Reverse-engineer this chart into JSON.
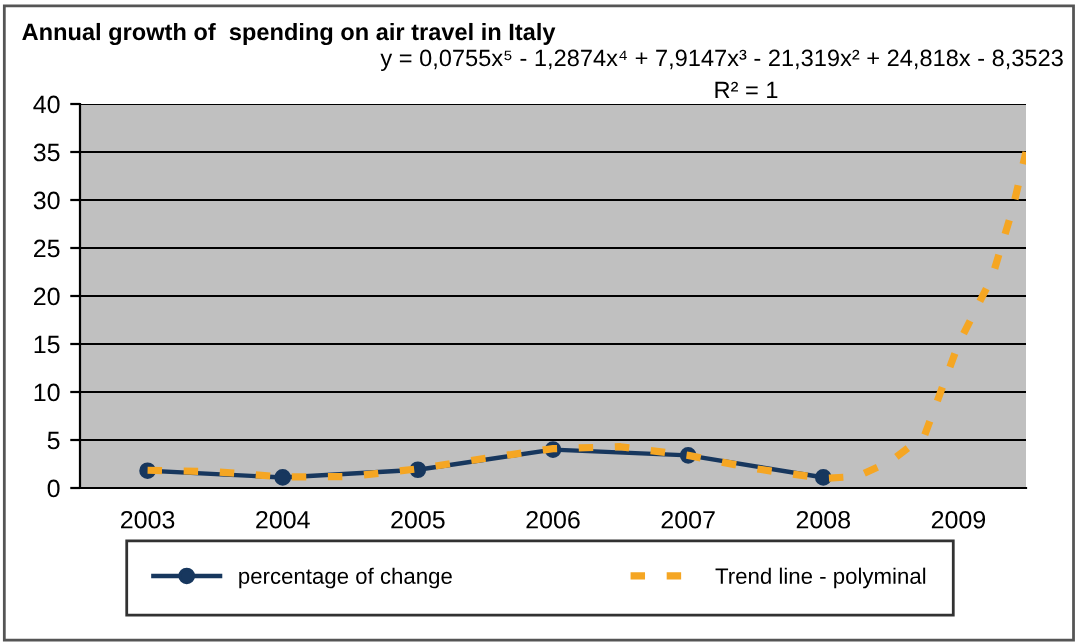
{
  "chart_data": {
    "type": "line",
    "title": "Annual growth of  spending on air travel in Italy",
    "annotations": [
      "y = 0,0755x⁵ - 1,2874x⁴ + 7,9147x³ - 21,319x² + 24,818x - 8,3523",
      "R² = 1"
    ],
    "x": [
      2003,
      2004,
      2005,
      2006,
      2007,
      2008
    ],
    "series": [
      {
        "name": "percentage of change",
        "color": "#17375e",
        "values": [
          1.8,
          1.1,
          1.9,
          4.0,
          3.4,
          1.1
        ],
        "marker": "circle",
        "line_style": "solid"
      },
      {
        "name": "Trend line - polyminal",
        "color": "#f5a623",
        "type": "line",
        "marker": "none",
        "line_style": "dashed",
        "x": [
          2003,
          2003.5,
          2004,
          2004.5,
          2005,
          2005.5,
          2006,
          2006.5,
          2007,
          2007.5,
          2008,
          2008.25,
          2008.5,
          2008.75,
          2009,
          2009.25,
          2009.4,
          2009.5
        ],
        "values": [
          1.85,
          1.7,
          1.15,
          1.2,
          2.0,
          3.1,
          4.1,
          4.3,
          3.4,
          2.0,
          1.0,
          1.2,
          2.8,
          5.5,
          15,
          22,
          29,
          35
        ]
      }
    ],
    "xlim": [
      2002.5,
      2009.5
    ],
    "xticks": [
      2003,
      2004,
      2005,
      2006,
      2007,
      2008,
      2009
    ],
    "ylim": [
      0,
      40
    ],
    "yticks": [
      0,
      5,
      10,
      15,
      20,
      25,
      30,
      35,
      40
    ],
    "grid": "y",
    "legend": "bottom"
  }
}
